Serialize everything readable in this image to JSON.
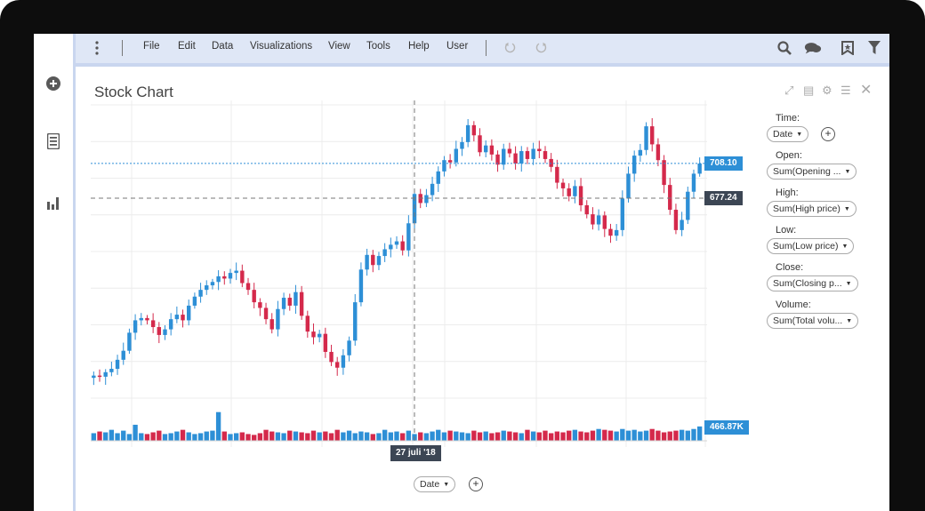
{
  "app": {
    "menu": [
      "File",
      "Edit",
      "Data",
      "Visualizations",
      "View",
      "Tools",
      "Help",
      "User"
    ],
    "toolbar_icons": [
      "search-icon",
      "comments-icon",
      "bookmark-icon",
      "filter-icon"
    ],
    "sidebar_icons": [
      "add-icon",
      "sheet-icon",
      "visualizations-icon"
    ]
  },
  "chart_panel": {
    "title": "Stock Chart",
    "header_icons": [
      "expand-icon",
      "export-icon",
      "settings-icon",
      "list-icon",
      "close-icon"
    ]
  },
  "fields": {
    "time_label": "Time:",
    "time_value": "Date",
    "open_label": "Open:",
    "open_value": "Sum(Opening ...",
    "high_label": "High:",
    "high_value": "Sum(High price)",
    "low_label": "Low:",
    "low_value": "Sum(Low price)",
    "close_label": "Close:",
    "close_value": "Sum(Closing p...",
    "volume_label": "Volume:",
    "volume_value": "Sum(Total volu..."
  },
  "x_axis_selector": "Date",
  "colors": {
    "up": "#2d8fd6",
    "down": "#d4294b",
    "accent": "#2d8fd6",
    "crosshair_tag": "#3c4654"
  },
  "chart_data": {
    "type": "candlestick",
    "price_markers": {
      "last": "708.10",
      "crosshair": "677.24"
    },
    "volume_marker": "466.87K",
    "crosshair_date": "27 juli '18",
    "closes": [
      520,
      519,
      523,
      526,
      534,
      542,
      558,
      569,
      571,
      569,
      563,
      556,
      561,
      570,
      574,
      569,
      582,
      590,
      596,
      600,
      603,
      608,
      606,
      611,
      613,
      602,
      596,
      585,
      580,
      570,
      561,
      579,
      589,
      582,
      594,
      573,
      559,
      554,
      557,
      541,
      532,
      527,
      538,
      551,
      585,
      614,
      627,
      618,
      626,
      632,
      636,
      639,
      631,
      655,
      681,
      673,
      680,
      690,
      701,
      711,
      709,
      721,
      727,
      742,
      733,
      718,
      724,
      716,
      707,
      721,
      717,
      708,
      719,
      712,
      721,
      719,
      712,
      705,
      691,
      686,
      679,
      688,
      671,
      663,
      654,
      662,
      650,
      644,
      649,
      677,
      699,
      715,
      720,
      741,
      725,
      711,
      689,
      667,
      649,
      658,
      683,
      699,
      708
    ]
  }
}
